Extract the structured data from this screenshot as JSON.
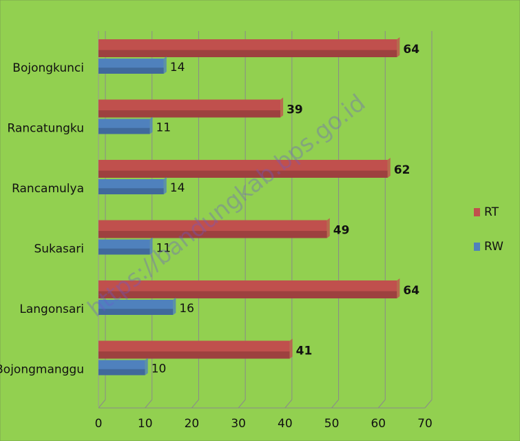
{
  "chart_data": {
    "type": "bar",
    "orientation": "horizontal",
    "categories": [
      "Bojongkunci",
      "Rancatungku",
      "Rancamulya",
      "Sukasari",
      "Langonsari",
      "Bojongmanggu"
    ],
    "series": [
      {
        "name": "RT",
        "color": "#c0504d",
        "values": [
          64,
          39,
          62,
          49,
          64,
          41
        ]
      },
      {
        "name": "RW",
        "color": "#4f81bd",
        "values": [
          14,
          11,
          14,
          11,
          16,
          10
        ]
      }
    ],
    "xlim": [
      0,
      70
    ],
    "xticks": [
      0,
      10,
      20,
      30,
      40,
      50,
      60,
      70
    ],
    "grid": true,
    "legend": "right",
    "watermark": "https://bandungkab.bps.go.id"
  }
}
